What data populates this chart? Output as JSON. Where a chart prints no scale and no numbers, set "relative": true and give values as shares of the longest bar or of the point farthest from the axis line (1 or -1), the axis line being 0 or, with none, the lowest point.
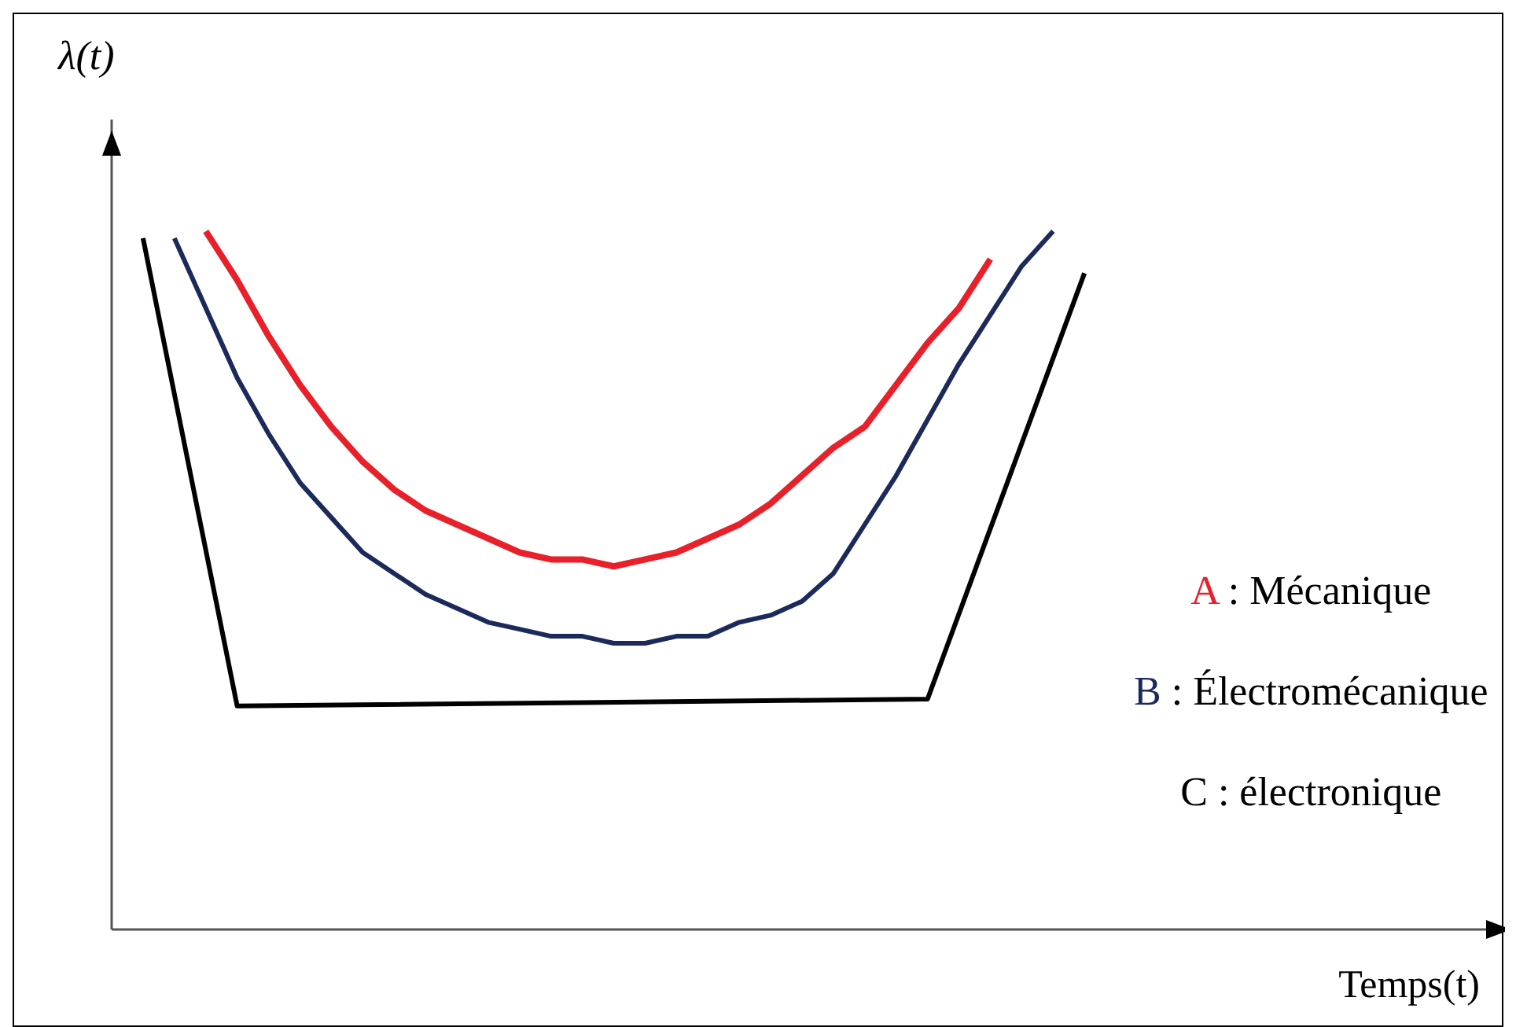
{
  "chart_data": {
    "type": "line",
    "relative": true,
    "ylabel": "λ(t)",
    "xlabel": "Temps(t)",
    "legend": "right",
    "grid": false,
    "categories": [
      null,
      null,
      null,
      null,
      null,
      null,
      null,
      null,
      null,
      null,
      null,
      null,
      null,
      null,
      null,
      null,
      null,
      null,
      null,
      null,
      null,
      null,
      null,
      null,
      null,
      null,
      null,
      null,
      null,
      null,
      null,
      null,
      null,
      null,
      null,
      null,
      null,
      null,
      null,
      null,
      null,
      null,
      null,
      null,
      null
    ],
    "series": [
      {
        "name": "A : Mécanique",
        "color": "#e8202a",
        "values": [
          null,
          null,
          null,
          1.0,
          0.93,
          0.85,
          0.78,
          0.72,
          0.67,
          0.63,
          0.6,
          0.58,
          0.56,
          0.54,
          0.53,
          0.53,
          0.52,
          0.53,
          0.54,
          0.56,
          0.58,
          0.61,
          0.65,
          0.69,
          0.72,
          0.78,
          0.84,
          0.89,
          0.96,
          null,
          null,
          null,
          null,
          null,
          null,
          null,
          null,
          null,
          null,
          null,
          null,
          null,
          null,
          null,
          null
        ]
      },
      {
        "name": "B : Électromécanique",
        "color": "#1b2a5a",
        "values": [
          null,
          null,
          0.99,
          0.89,
          0.79,
          0.71,
          0.64,
          0.59,
          0.54,
          0.51,
          0.48,
          0.46,
          0.44,
          0.43,
          0.42,
          0.42,
          0.41,
          0.41,
          0.42,
          0.42,
          0.44,
          0.45,
          0.47,
          0.51,
          0.58,
          0.65,
          0.73,
          0.81,
          0.88,
          0.95,
          1.0,
          null,
          null,
          null,
          null,
          null,
          null,
          null,
          null,
          null,
          null,
          null,
          null,
          null,
          null
        ]
      },
      {
        "name": "C : électronique",
        "color": "#000000",
        "values": [
          null,
          0.99,
          null,
          null,
          0.32,
          null,
          null,
          null,
          null,
          null,
          null,
          null,
          null,
          null,
          null,
          null,
          null,
          null,
          null,
          null,
          null,
          null,
          null,
          null,
          null,
          null,
          0.33,
          null,
          null,
          null,
          null,
          0.94,
          null,
          null,
          null,
          null,
          null,
          null,
          null,
          null,
          null,
          null,
          null,
          null,
          null
        ]
      }
    ]
  }
}
